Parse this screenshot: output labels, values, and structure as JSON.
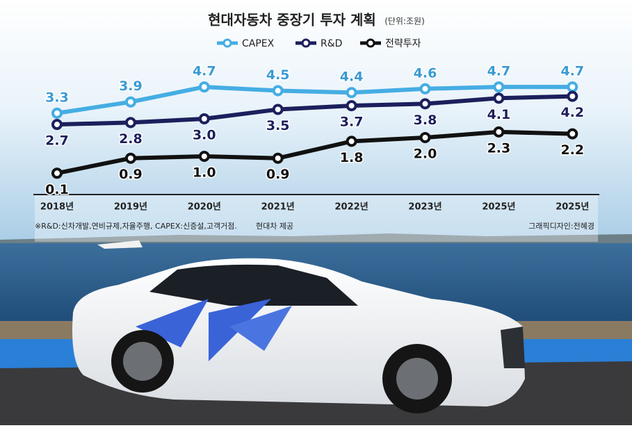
{
  "chart_data": {
    "type": "line",
    "title": "현대자동차 중장기 투자 계획",
    "subtitle": "(단위:조원)",
    "categories": [
      "2018년",
      "2019년",
      "2020년",
      "2021년",
      "2022년",
      "2023년",
      "2025년",
      "2025년"
    ],
    "series": [
      {
        "name": "CAPEX",
        "color": "#45ade3",
        "values": [
          3.3,
          3.9,
          4.7,
          4.5,
          4.4,
          4.6,
          4.7,
          4.7
        ],
        "value_labels": [
          "3.3",
          "3.9",
          "4.7",
          "4.5",
          "4.4",
          "4.6",
          "4.7",
          "4.7"
        ]
      },
      {
        "name": "R&D",
        "color": "#1c1f5c",
        "values": [
          2.7,
          2.8,
          3.0,
          3.5,
          3.7,
          3.8,
          4.1,
          4.2
        ],
        "value_labels": [
          "2.7",
          "2.8",
          "3.0",
          "3.5",
          "3.7",
          "3.8",
          "4.1",
          "4.2"
        ]
      },
      {
        "name": "전략투자",
        "color": "#111111",
        "values": [
          0.1,
          0.9,
          1.0,
          0.9,
          1.8,
          2.0,
          2.3,
          2.2
        ],
        "value_labels": [
          "0.1",
          "0.9",
          "1.0",
          "0.9",
          "1.8",
          "2.0",
          "2.3",
          "2.2"
        ]
      }
    ],
    "footnote": "※R&D:신차개발,연비규제,자율주행, CAPEX:신증설,고객거점.",
    "source": "현대차 제공",
    "credit": "그래픽디자인:전혜경"
  }
}
